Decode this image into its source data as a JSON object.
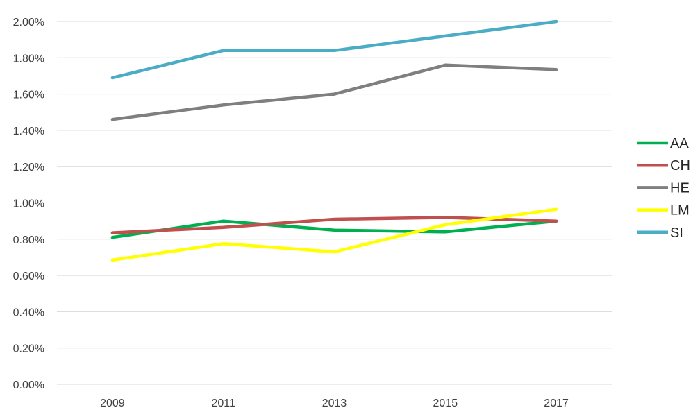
{
  "chart_data": {
    "type": "line",
    "title": "",
    "xlabel": "",
    "ylabel": "",
    "categories": [
      "2009",
      "2011",
      "2013",
      "2015",
      "2017"
    ],
    "ylim": [
      0,
      0.02
    ],
    "yticks": [
      "0.00%",
      "0.20%",
      "0.40%",
      "0.60%",
      "0.80%",
      "1.00%",
      "1.20%",
      "1.40%",
      "1.60%",
      "1.80%",
      "2.00%"
    ],
    "grid": "horizontal",
    "legend_position": "right",
    "series": [
      {
        "name": "AA",
        "color": "#00B050",
        "values": [
          0.0081,
          0.009,
          0.0085,
          0.0084,
          0.009
        ]
      },
      {
        "name": "CH",
        "color": "#C0504D",
        "values": [
          0.00835,
          0.00865,
          0.0091,
          0.0092,
          0.009
        ]
      },
      {
        "name": "HE",
        "color": "#7F7F7F",
        "values": [
          0.0146,
          0.0154,
          0.016,
          0.0176,
          0.01735
        ]
      },
      {
        "name": "LM",
        "color": "#FFFF00",
        "values": [
          0.00685,
          0.00775,
          0.0073,
          0.0088,
          0.00965
        ]
      },
      {
        "name": "SI",
        "color": "#4BACC6",
        "values": [
          0.0169,
          0.0184,
          0.0184,
          0.0192,
          0.02
        ]
      }
    ]
  }
}
